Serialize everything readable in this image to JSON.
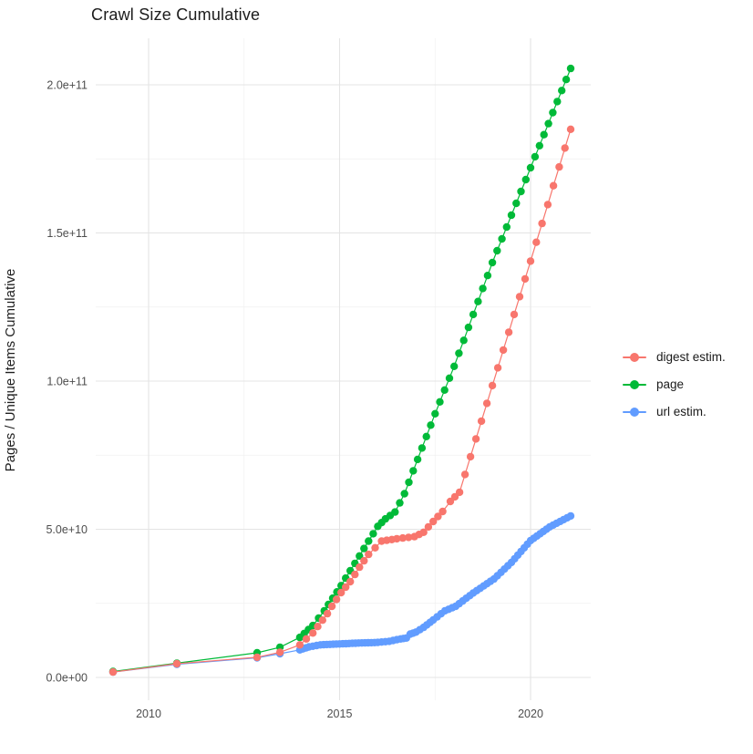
{
  "title": "Crawl Size Cumulative",
  "y_axis": {
    "label": "Pages / Unique Items Cumulative",
    "ticks": [
      "0.0e+00",
      "5.0e+10",
      "1.0e+11",
      "1.5e+11",
      "2.0e+11"
    ],
    "tick_values_e9": [
      0,
      50,
      100,
      150,
      200
    ],
    "minor_values_e9": [
      25,
      75,
      125,
      175
    ]
  },
  "x_axis": {
    "ticks": [
      "2010",
      "2015",
      "2020"
    ],
    "tick_values": [
      2010,
      2015,
      2020
    ],
    "minor_values": [
      2012.5,
      2017.5
    ]
  },
  "legend": {
    "items": [
      {
        "label": "digest estim.",
        "color": "#F8766D"
      },
      {
        "label": "page",
        "color": "#00BA38"
      },
      {
        "label": "url estim.",
        "color": "#619CFF"
      }
    ]
  },
  "chart_data": {
    "type": "scatter",
    "title": "Crawl Size Cumulative",
    "xlabel": "",
    "ylabel": "Pages / Unique Items Cumulative",
    "x_range": [
      2008.6,
      2021.6
    ],
    "y_range": [
      0,
      215000000000.0
    ],
    "grid": "on",
    "legend_position": "right",
    "units": "values are billions (1e9) of pages / unique items, cumulative",
    "dense_from": 2014.0,
    "series": [
      {
        "name": "digest estim.",
        "color": "#F8766D",
        "dense_step_years": 0.15,
        "points_year_value_e9": [
          [
            2009.07,
            1.8
          ],
          [
            2010.74,
            4.6
          ],
          [
            2012.84,
            6.8
          ],
          [
            2013.44,
            8.5
          ],
          [
            2013.96,
            11
          ],
          [
            2014.3,
            15
          ],
          [
            2014.68,
            21.5
          ],
          [
            2014.8,
            24
          ],
          [
            2015.04,
            28.6
          ],
          [
            2015.28,
            32.3
          ],
          [
            2015.52,
            37.2
          ],
          [
            2015.76,
            41.5
          ],
          [
            2016.1,
            46
          ],
          [
            2016.5,
            46.8
          ],
          [
            2016.96,
            47.5
          ],
          [
            2017.2,
            49
          ],
          [
            2017.45,
            52.6
          ],
          [
            2017.7,
            56
          ],
          [
            2017.9,
            59.4
          ],
          [
            2018.14,
            62.5
          ],
          [
            2019.0,
            98.5
          ],
          [
            2020.0,
            140.5
          ],
          [
            2021.05,
            185
          ]
        ]
      },
      {
        "name": "page",
        "color": "#00BA38",
        "dense_step_years": 0.12,
        "points_year_value_e9": [
          [
            2009.07,
            2.0
          ],
          [
            2010.74,
            4.8
          ],
          [
            2012.84,
            8.3
          ],
          [
            2013.44,
            10.2
          ],
          [
            2013.96,
            13.5
          ],
          [
            2014.3,
            17.5
          ],
          [
            2014.6,
            22.5
          ],
          [
            2015.04,
            31
          ],
          [
            2015.28,
            36
          ],
          [
            2015.52,
            41
          ],
          [
            2015.76,
            46
          ],
          [
            2016.0,
            51
          ],
          [
            2016.2,
            53.5
          ],
          [
            2016.45,
            55.8
          ],
          [
            2016.7,
            62
          ],
          [
            2017.5,
            89
          ],
          [
            2018.0,
            105
          ],
          [
            2019.0,
            140
          ],
          [
            2020.0,
            172
          ],
          [
            2021.05,
            205.5
          ]
        ]
      },
      {
        "name": "url estim.",
        "color": "#619CFF",
        "dense_step_years": 0.09,
        "points_year_value_e9": [
          [
            2009.07,
            1.8
          ],
          [
            2010.74,
            4.4
          ],
          [
            2012.84,
            6.6
          ],
          [
            2013.44,
            8.0
          ],
          [
            2013.96,
            9.3
          ],
          [
            2014.2,
            10.3
          ],
          [
            2014.5,
            11.0
          ],
          [
            2015.0,
            11.3
          ],
          [
            2015.5,
            11.6
          ],
          [
            2016.0,
            11.8
          ],
          [
            2016.3,
            12.2
          ],
          [
            2016.6,
            13.0
          ],
          [
            2016.75,
            13.3
          ],
          [
            2016.85,
            14.6
          ],
          [
            2017.0,
            15.3
          ],
          [
            2017.2,
            16.9
          ],
          [
            2017.45,
            19.4
          ],
          [
            2017.76,
            22.5
          ],
          [
            2018.04,
            24
          ],
          [
            2018.5,
            28.5
          ],
          [
            2019.04,
            33.2
          ],
          [
            2019.5,
            38.8
          ],
          [
            2020.0,
            46.2
          ],
          [
            2020.5,
            50.8
          ],
          [
            2021.05,
            54.5
          ]
        ]
      }
    ]
  }
}
